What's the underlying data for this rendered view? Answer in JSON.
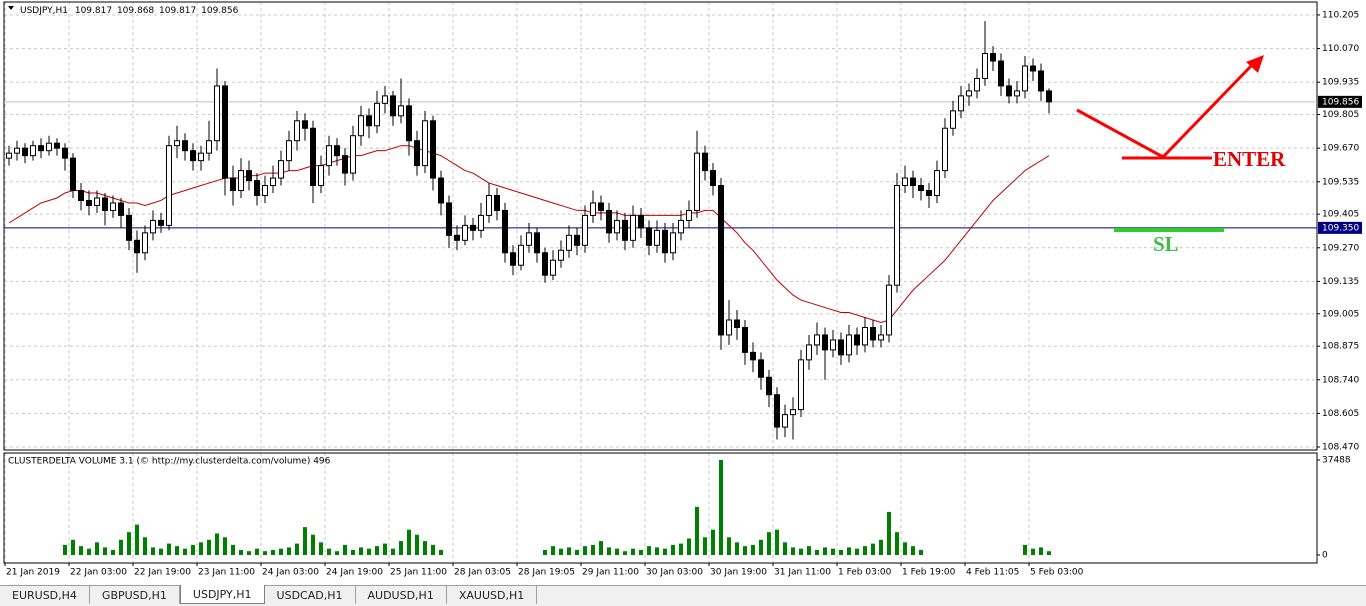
{
  "chart_data": {
    "type": "candlestick",
    "symbol": "USDJPY,H1",
    "header_values": [
      109.817,
      109.868,
      109.817,
      109.856
    ],
    "categories": [
      "21 Jan 2019",
      null,
      null,
      null,
      null,
      null,
      null,
      null,
      "22 Jan 03:00",
      null,
      null,
      null,
      null,
      null,
      null,
      null,
      "22 Jan 19:00",
      null,
      null,
      null,
      null,
      null,
      null,
      null,
      "23 Jan 11:00",
      null,
      null,
      null,
      null,
      null,
      null,
      null,
      "24 Jan 03:00",
      null,
      null,
      null,
      null,
      null,
      null,
      null,
      "24 Jan 19:00",
      null,
      null,
      null,
      null,
      null,
      null,
      null,
      "25 Jan 11:00",
      null,
      null,
      null,
      null,
      null,
      null,
      null,
      "28 Jan 03:05",
      null,
      null,
      null,
      null,
      null,
      null,
      null,
      "28 Jan 19:05",
      null,
      null,
      null,
      null,
      null,
      null,
      null,
      "29 Jan 11:00",
      null,
      null,
      null,
      null,
      null,
      null,
      null,
      "30 Jan 03:00",
      null,
      null,
      null,
      null,
      null,
      null,
      null,
      "30 Jan 19:00",
      null,
      null,
      null,
      null,
      null,
      null,
      null,
      "31 Jan 11:00",
      null,
      null,
      null,
      null,
      null,
      null,
      null,
      "1 Feb 03:00",
      null,
      null,
      null,
      null,
      null,
      null,
      null,
      "1 Feb 19:00",
      null,
      null,
      null,
      null,
      null,
      null,
      null,
      "4 Feb 11:05",
      null,
      null,
      null,
      null,
      null,
      null,
      null,
      "5 Feb 03:00",
      null,
      null
    ],
    "open": [
      109.63,
      109.65,
      109.67,
      109.64,
      109.68,
      109.66,
      109.69,
      109.67,
      109.63,
      109.5,
      109.46,
      109.44,
      109.47,
      109.42,
      109.45,
      109.4,
      109.3,
      109.25,
      109.33,
      109.38,
      109.36,
      109.68,
      109.7,
      109.66,
      109.62,
      109.65,
      109.7,
      109.92,
      109.55,
      109.5,
      109.58,
      109.54,
      109.48,
      109.52,
      109.55,
      109.62,
      109.7,
      109.78,
      109.75,
      109.52,
      109.6,
      109.68,
      109.64,
      109.57,
      109.72,
      109.8,
      109.76,
      109.85,
      109.88,
      109.8,
      109.84,
      109.7,
      109.6,
      109.78,
      109.55,
      109.45,
      109.32,
      109.3,
      109.36,
      109.34,
      109.4,
      109.48,
      109.42,
      109.25,
      109.2,
      109.28,
      109.33,
      109.25,
      109.16,
      109.22,
      109.26,
      109.32,
      109.28,
      109.4,
      109.45,
      109.42,
      109.33,
      109.38,
      109.3,
      109.4,
      109.35,
      109.28,
      109.34,
      109.25,
      109.33,
      109.38,
      109.42,
      109.65,
      109.58,
      109.52,
      108.92,
      108.98,
      108.95,
      108.85,
      108.82,
      108.75,
      108.68,
      108.55,
      108.6,
      108.62,
      108.82,
      108.88,
      108.92,
      108.86,
      108.9,
      108.84,
      108.92,
      108.88,
      108.95,
      108.9,
      108.92,
      109.12,
      109.52,
      109.55,
      109.52,
      109.5,
      109.48,
      109.58,
      109.75,
      109.82,
      109.88,
      109.9,
      109.95,
      110.05,
      110.02,
      109.92,
      109.88,
      109.9,
      110.0,
      109.98,
      109.9
    ],
    "high": [
      109.68,
      109.7,
      109.69,
      109.7,
      109.71,
      109.72,
      109.71,
      109.69,
      109.65,
      109.53,
      109.5,
      109.5,
      109.49,
      109.48,
      109.47,
      109.43,
      109.34,
      109.36,
      109.42,
      109.41,
      109.72,
      109.76,
      109.73,
      109.69,
      109.68,
      109.78,
      109.99,
      109.94,
      109.6,
      109.63,
      109.62,
      109.57,
      109.56,
      109.6,
      109.66,
      109.74,
      109.82,
      109.81,
      109.78,
      109.64,
      109.72,
      109.71,
      109.67,
      109.76,
      109.84,
      109.83,
      109.9,
      109.92,
      109.9,
      109.95,
      109.87,
      109.74,
      109.82,
      109.8,
      109.58,
      109.48,
      109.36,
      109.4,
      109.39,
      109.45,
      109.53,
      109.51,
      109.45,
      109.28,
      109.32,
      109.37,
      109.35,
      109.27,
      109.26,
      109.3,
      109.36,
      109.35,
      109.44,
      109.5,
      109.48,
      109.45,
      109.42,
      109.41,
      109.44,
      109.43,
      109.38,
      109.38,
      109.37,
      109.37,
      109.42,
      109.46,
      109.74,
      109.68,
      109.61,
      109.55,
      109.06,
      109.02,
      108.98,
      108.89,
      108.85,
      108.78,
      108.71,
      108.64,
      108.67,
      108.86,
      108.92,
      108.97,
      108.95,
      108.94,
      108.93,
      108.96,
      108.95,
      108.99,
      108.98,
      108.96,
      109.16,
      109.57,
      109.6,
      109.58,
      109.55,
      109.53,
      109.62,
      109.79,
      109.86,
      109.92,
      109.93,
      109.99,
      110.18,
      110.08,
      110.05,
      109.95,
      109.94,
      110.04,
      110.03,
      110.01,
      109.91
    ],
    "low": [
      109.6,
      109.62,
      109.61,
      109.62,
      109.63,
      109.64,
      109.64,
      109.58,
      109.47,
      109.42,
      109.4,
      109.41,
      109.36,
      109.39,
      109.35,
      109.26,
      109.17,
      109.22,
      109.3,
      109.33,
      109.34,
      109.63,
      109.62,
      109.58,
      109.58,
      109.62,
      109.66,
      109.48,
      109.44,
      109.47,
      109.5,
      109.44,
      109.45,
      109.49,
      109.52,
      109.58,
      109.66,
      109.7,
      109.45,
      109.49,
      109.56,
      109.6,
      109.52,
      109.54,
      109.68,
      109.71,
      109.73,
      109.81,
      109.76,
      109.77,
      109.64,
      109.56,
      109.57,
      109.5,
      109.4,
      109.27,
      109.26,
      109.28,
      109.3,
      109.31,
      109.37,
      109.38,
      109.21,
      109.16,
      109.18,
      109.25,
      109.21,
      109.13,
      109.14,
      109.19,
      109.23,
      109.24,
      109.25,
      109.37,
      109.38,
      109.29,
      109.3,
      109.26,
      109.27,
      109.31,
      109.24,
      109.25,
      109.21,
      109.22,
      109.3,
      109.35,
      109.39,
      109.54,
      109.48,
      108.86,
      108.88,
      108.9,
      108.8,
      108.77,
      108.7,
      108.63,
      108.5,
      108.51,
      108.5,
      108.59,
      108.78,
      108.84,
      108.74,
      108.83,
      108.8,
      108.81,
      108.84,
      108.85,
      108.87,
      108.87,
      108.89,
      109.09,
      109.49,
      109.47,
      109.46,
      109.43,
      109.45,
      109.55,
      109.72,
      109.79,
      109.84,
      109.87,
      109.92,
      109.98,
      109.88,
      109.85,
      109.85,
      109.87,
      109.94,
      109.86,
      109.81
    ],
    "close": [
      109.65,
      109.67,
      109.64,
      109.68,
      109.66,
      109.69,
      109.67,
      109.63,
      109.5,
      109.46,
      109.44,
      109.47,
      109.42,
      109.45,
      109.4,
      109.3,
      109.25,
      109.33,
      109.38,
      109.36,
      109.68,
      109.7,
      109.66,
      109.62,
      109.65,
      109.7,
      109.92,
      109.55,
      109.5,
      109.58,
      109.54,
      109.48,
      109.52,
      109.55,
      109.62,
      109.7,
      109.78,
      109.75,
      109.52,
      109.6,
      109.68,
      109.64,
      109.57,
      109.72,
      109.8,
      109.76,
      109.85,
      109.88,
      109.8,
      109.84,
      109.7,
      109.6,
      109.78,
      109.55,
      109.45,
      109.32,
      109.3,
      109.36,
      109.34,
      109.4,
      109.48,
      109.42,
      109.25,
      109.2,
      109.28,
      109.33,
      109.25,
      109.16,
      109.22,
      109.26,
      109.32,
      109.28,
      109.4,
      109.45,
      109.42,
      109.33,
      109.38,
      109.3,
      109.4,
      109.35,
      109.28,
      109.34,
      109.25,
      109.33,
      109.38,
      109.42,
      109.65,
      109.58,
      109.52,
      108.92,
      108.98,
      108.95,
      108.85,
      108.82,
      108.75,
      108.68,
      108.55,
      108.6,
      108.62,
      108.82,
      108.88,
      108.92,
      108.86,
      108.9,
      108.84,
      108.92,
      108.88,
      108.95,
      108.9,
      108.92,
      109.12,
      109.52,
      109.55,
      109.52,
      109.5,
      109.48,
      109.58,
      109.75,
      109.82,
      109.88,
      109.9,
      109.95,
      110.05,
      110.02,
      109.92,
      109.88,
      109.9,
      110.0,
      109.98,
      109.9,
      109.856
    ],
    "color_up": "#ffffff",
    "color_down": "#000000",
    "ma": {
      "color": "#c00000",
      "values": [
        109.37,
        109.39,
        109.41,
        109.43,
        109.45,
        109.46,
        109.47,
        109.49,
        109.5,
        109.5,
        109.49,
        109.49,
        109.48,
        109.47,
        109.46,
        109.45,
        109.45,
        109.44,
        109.45,
        109.46,
        109.48,
        109.49,
        109.5,
        109.51,
        109.52,
        109.53,
        109.54,
        109.55,
        109.55,
        109.55,
        109.56,
        109.56,
        109.57,
        109.57,
        109.57,
        109.58,
        109.58,
        109.59,
        109.6,
        109.6,
        109.61,
        109.62,
        109.63,
        109.64,
        109.64,
        109.65,
        109.66,
        109.66,
        109.67,
        109.68,
        109.68,
        109.67,
        109.66,
        109.65,
        109.64,
        109.62,
        109.6,
        109.58,
        109.57,
        109.55,
        109.53,
        109.52,
        109.51,
        109.5,
        109.49,
        109.48,
        109.47,
        109.46,
        109.45,
        109.44,
        109.43,
        109.42,
        109.42,
        109.41,
        109.41,
        109.41,
        109.41,
        109.4,
        109.4,
        109.4,
        109.4,
        109.4,
        109.4,
        109.4,
        109.4,
        109.41,
        109.41,
        109.42,
        109.42,
        109.39,
        109.36,
        109.33,
        109.29,
        109.26,
        109.22,
        109.18,
        109.14,
        109.11,
        109.08,
        109.06,
        109.05,
        109.04,
        109.03,
        109.02,
        109.01,
        109.01,
        109.0,
        108.99,
        108.98,
        108.97,
        108.98,
        109.02,
        109.06,
        109.1,
        109.13,
        109.16,
        109.19,
        109.22,
        109.26,
        109.3,
        109.34,
        109.38,
        109.42,
        109.46,
        109.49,
        109.52,
        109.55,
        109.58,
        109.6,
        109.62,
        109.64
      ]
    },
    "ylim": [
      108.458,
      110.257
    ],
    "yticks": [
      110.205,
      {
        "value": 110.07,
        "label": "110.070"
      },
      109.935,
      109.805,
      {
        "value": 109.67,
        "label": "109.670"
      },
      109.535,
      109.405,
      {
        "value": 109.27,
        "label": "109.270"
      },
      109.135,
      109.005,
      108.875,
      {
        "value": 108.74,
        "label": "108.740"
      },
      108.605,
      {
        "value": 108.47,
        "label": "108.470"
      }
    ],
    "grid": true,
    "current_price": 109.856,
    "level": {
      "value": 109.35,
      "label": "109.350",
      "color": "#000080"
    },
    "volume": {
      "title": "CLUSTERDELTA VOLUME 3.1 (© http://my.clusterdelta.com/volume) 496",
      "color": "#008000",
      "values": [
        null,
        null,
        null,
        null,
        null,
        null,
        null,
        4000,
        6000,
        3500,
        2500,
        5000,
        3000,
        2000,
        6000,
        9000,
        12000,
        7000,
        3000,
        2500,
        4500,
        3500,
        2500,
        4000,
        5000,
        6000,
        8500,
        7000,
        4000,
        2000,
        1500,
        2500,
        1500,
        2000,
        2500,
        3000,
        4500,
        11000,
        8000,
        5000,
        2500,
        1500,
        4000,
        2000,
        3000,
        2500,
        3500,
        4500,
        2500,
        5500,
        10000,
        8000,
        5500,
        4000,
        2000,
        null,
        null,
        null,
        null,
        null,
        null,
        null,
        null,
        null,
        null,
        null,
        null,
        2000,
        3500,
        2500,
        3000,
        2000,
        3500,
        4000,
        5500,
        3000,
        2500,
        1500,
        2500,
        2000,
        3500,
        3000,
        2500,
        4000,
        4500,
        6500,
        19000,
        7000,
        10000,
        37488,
        7000,
        5000,
        3500,
        4000,
        6000,
        9000,
        10000,
        5000,
        3000,
        2500,
        3500,
        2000,
        3000,
        2500,
        2000,
        3000,
        2500,
        3500,
        4500,
        6000,
        17000,
        9000,
        5000,
        3500,
        2000,
        null,
        null,
        null,
        null,
        null,
        null,
        null,
        null,
        null,
        null,
        null,
        null,
        4000,
        2500,
        3000,
        1500
      ],
      "ylim": [
        -3157,
        40250
      ],
      "yticks": [
        37488,
        0
      ]
    },
    "annotations": {
      "enter": "ENTER",
      "sl": "SL"
    }
  },
  "tabs": [
    "EURUSD,H4",
    "GBPUSD,H1",
    "USDJPY,H1",
    "USDCAD,H1",
    "AUDUSD,H1",
    "XAUUSD,H1"
  ]
}
